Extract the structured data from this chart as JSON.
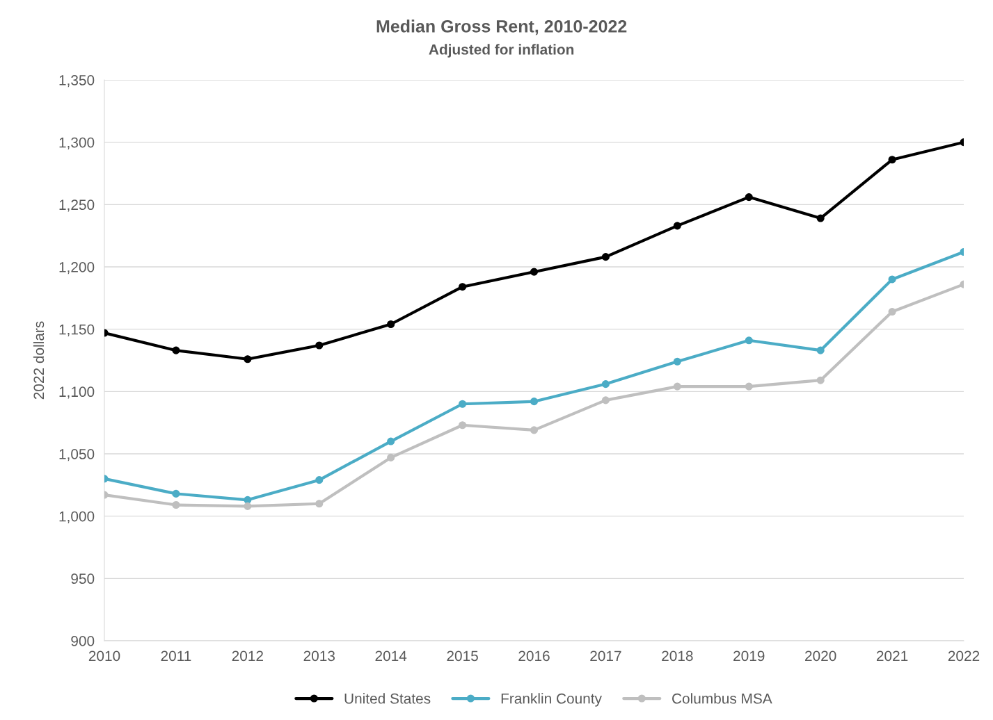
{
  "chart_data": {
    "type": "line",
    "title": "Median Gross Rent, 2010-2022",
    "subtitle": "Adjusted for inflation",
    "ylabel": "2022 dollars",
    "categories": [
      "2010",
      "2011",
      "2012",
      "2013",
      "2014",
      "2015",
      "2016",
      "2017",
      "2018",
      "2019",
      "2020",
      "2021",
      "2022"
    ],
    "series": [
      {
        "name": "United States",
        "color": "#000000",
        "values": [
          1147,
          1133,
          1126,
          1137,
          1154,
          1184,
          1196,
          1208,
          1233,
          1256,
          1239,
          1286,
          1300
        ]
      },
      {
        "name": "Franklin County",
        "color": "#4bacc6",
        "values": [
          1030,
          1018,
          1013,
          1029,
          1060,
          1090,
          1092,
          1106,
          1124,
          1141,
          1133,
          1190,
          1212
        ]
      },
      {
        "name": "Columbus MSA",
        "color": "#bfbfbf",
        "values": [
          1017,
          1009,
          1008,
          1010,
          1047,
          1073,
          1069,
          1093,
          1104,
          1104,
          1109,
          1164,
          1186
        ]
      }
    ],
    "ylim": [
      900,
      1350
    ],
    "yticks": [
      {
        "value": 900,
        "label": "900"
      },
      {
        "value": 950,
        "label": "950"
      },
      {
        "value": 1000,
        "label": "1,000"
      },
      {
        "value": 1050,
        "label": "1,050"
      },
      {
        "value": 1100,
        "label": "1,100"
      },
      {
        "value": 1150,
        "label": "1,150"
      },
      {
        "value": 1200,
        "label": "1,200"
      },
      {
        "value": 1250,
        "label": "1,250"
      },
      {
        "value": 1300,
        "label": "1,300"
      },
      {
        "value": 1350,
        "label": "1,350"
      }
    ],
    "grid": "y",
    "legend": "bottom",
    "marker": "circle",
    "line_style": "solid"
  }
}
